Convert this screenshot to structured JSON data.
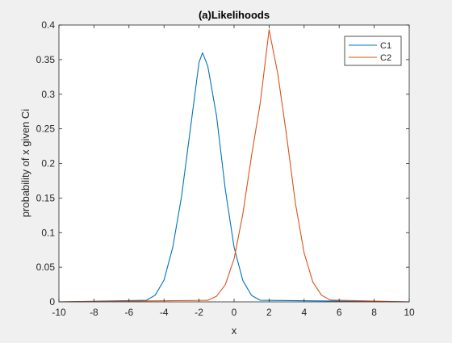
{
  "chart_data": {
    "type": "line",
    "title": "(a)Likelihoods",
    "xlabel": "x",
    "ylabel": "probability of x given Ci",
    "xlim": [
      -10,
      10
    ],
    "ylim": [
      0,
      0.4
    ],
    "xticks": [
      -10,
      -8,
      -6,
      -4,
      -2,
      0,
      2,
      4,
      6,
      8,
      10
    ],
    "xtick_labels": [
      "-10",
      "-8",
      "-6",
      "-4",
      "-2",
      "0",
      "2",
      "4",
      "6",
      "8",
      "10"
    ],
    "yticks": [
      0,
      0.05,
      0.1,
      0.15,
      0.2,
      0.25,
      0.3,
      0.35,
      0.4
    ],
    "ytick_labels": [
      "0",
      "0.05",
      "0.1",
      "0.15",
      "0.2",
      "0.25",
      "0.3",
      "0.35",
      "0.4"
    ],
    "grid": false,
    "legend_position": "top-right",
    "series": [
      {
        "name": "C1",
        "color": "#0072bd",
        "x": [
          -5.0,
          -4.5,
          -4.0,
          -3.5,
          -3.0,
          -2.5,
          -2.0,
          -1.8,
          -1.5,
          -1.0,
          -0.5,
          0.0,
          0.5,
          1.0,
          1.5
        ],
        "y": [
          0.0023,
          0.0097,
          0.0315,
          0.0788,
          0.1521,
          0.2488,
          0.3461,
          0.36,
          0.3404,
          0.2685,
          0.1622,
          0.079,
          0.0307,
          0.0092,
          0.0022
        ]
      },
      {
        "name": "C2",
        "color": "#d95319",
        "x": [
          -1.5,
          -1.0,
          -0.5,
          0.0,
          0.5,
          1.0,
          1.5,
          2.0,
          2.5,
          3.0,
          3.5,
          4.0,
          4.5,
          5.0,
          5.5
        ],
        "y": [
          0.0022,
          0.0081,
          0.0248,
          0.0621,
          0.1269,
          0.2116,
          0.2882,
          0.3932,
          0.329,
          0.2398,
          0.1427,
          0.0706,
          0.0285,
          0.0094,
          0.0025
        ]
      }
    ]
  }
}
